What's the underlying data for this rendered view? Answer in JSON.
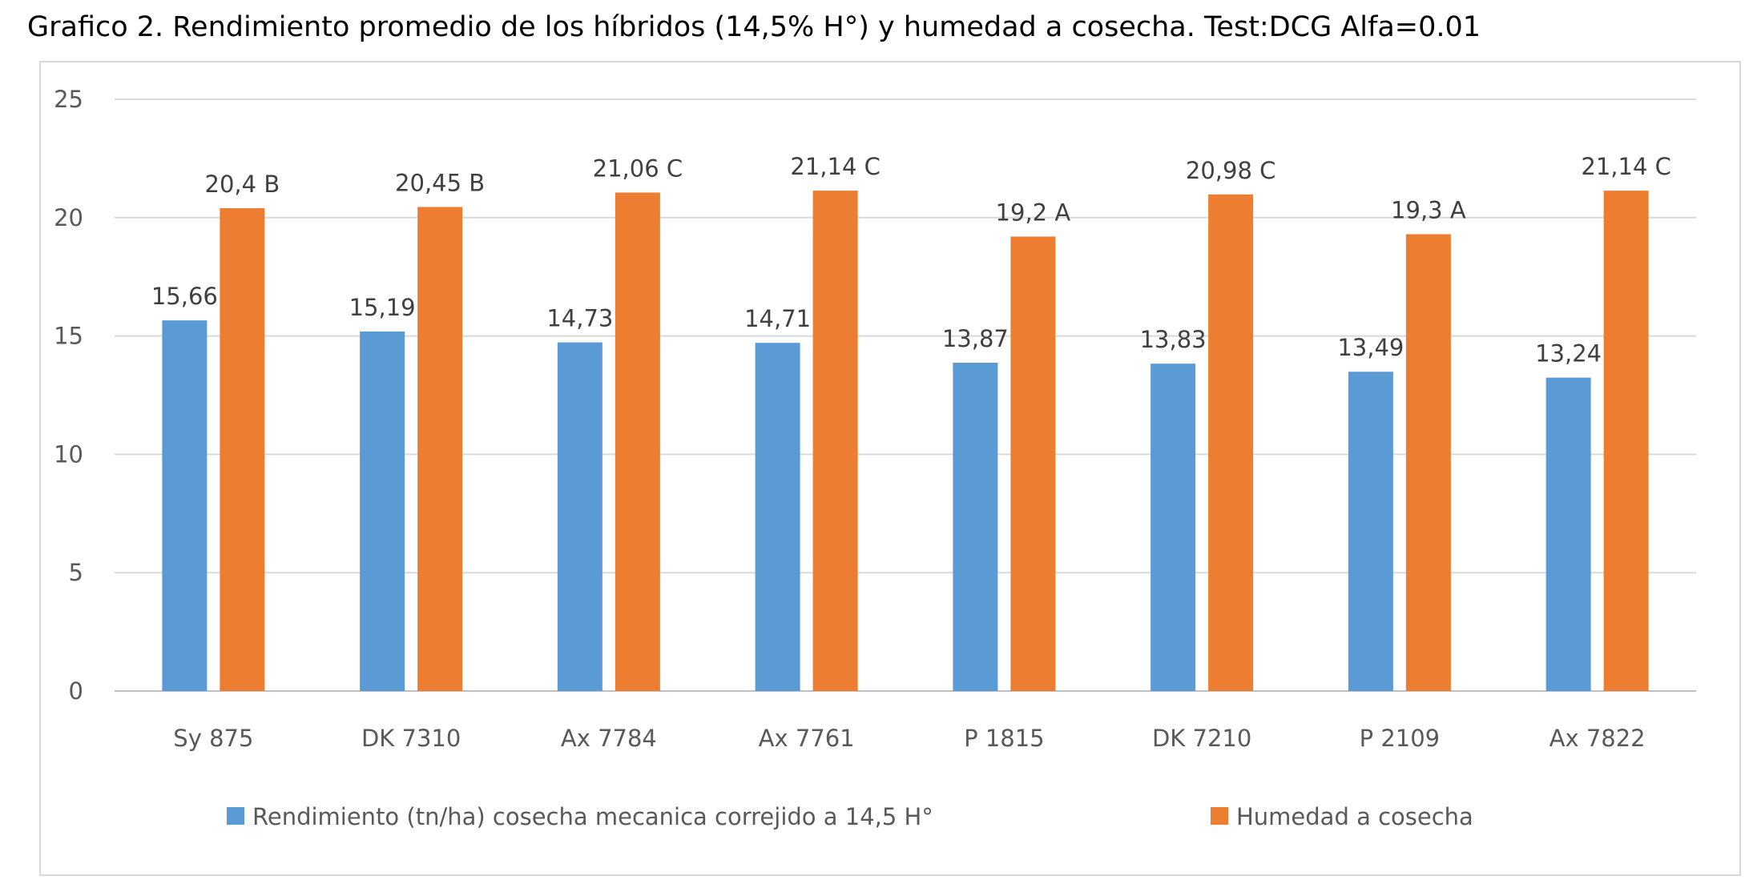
{
  "chart_data": {
    "type": "bar",
    "title": "Grafico 2. Rendimiento promedio de los híbridos (14,5% H°) y humedad a cosecha.  Test:DCG Alfa=0.01",
    "categories": [
      "Sy 875",
      "DK 7310",
      "Ax 7784",
      "Ax 7761",
      "P 1815",
      "DK 7210",
      "P 2109",
      "Ax 7822"
    ],
    "ylim": [
      0,
      25
    ],
    "yticks": [
      0,
      5,
      10,
      15,
      20,
      25
    ],
    "grid": true,
    "legend_position": "bottom",
    "series": [
      {
        "name": "Rendimiento (tn/ha) cosecha mecanica correjido a  14,5 H°",
        "color": "#5b9bd5",
        "values": [
          15.66,
          15.19,
          14.73,
          14.71,
          13.87,
          13.83,
          13.49,
          13.24
        ],
        "labels": [
          "15,66",
          "15,19",
          "14,73",
          "14,71",
          "13,87",
          "13,83",
          "13,49",
          "13,24"
        ]
      },
      {
        "name": "Humedad a cosecha",
        "color": "#ed7d31",
        "values": [
          20.4,
          20.45,
          21.06,
          21.14,
          19.2,
          20.98,
          19.3,
          21.14
        ],
        "labels": [
          "20,4 B",
          "20,45 B",
          "21,06 C",
          "21,14 C",
          "19,2 A",
          "20,98 C",
          "19,3 A",
          "21,14 C"
        ]
      }
    ]
  }
}
